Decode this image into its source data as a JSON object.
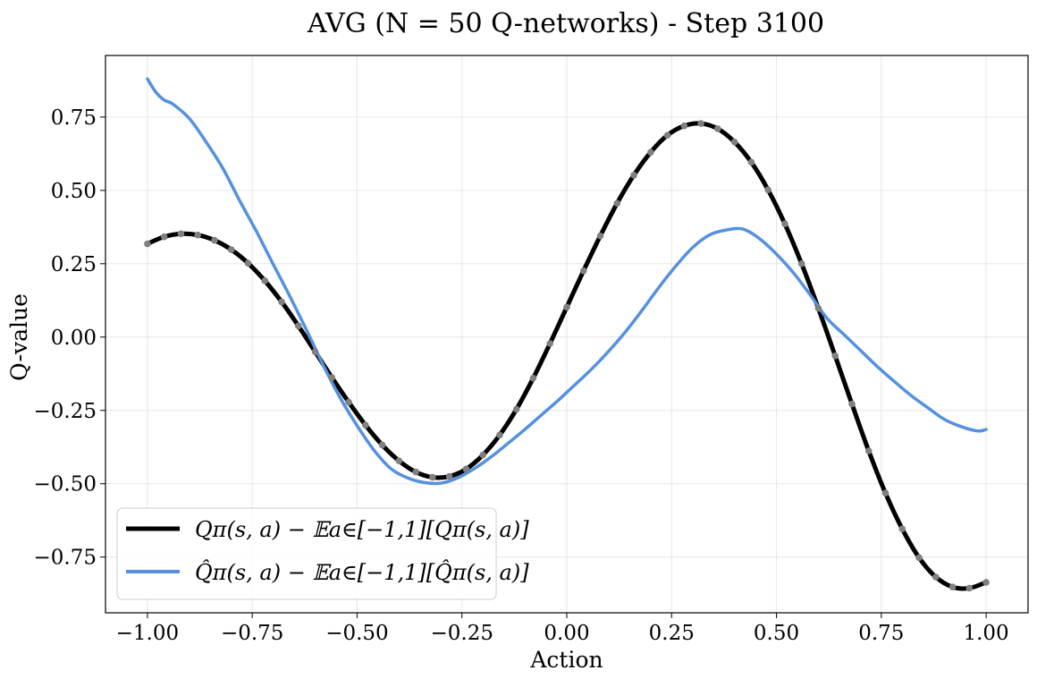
{
  "chart_data": {
    "type": "line",
    "title": "AVG (N = 50 Q-networks) - Step 3100",
    "xlabel": "Action",
    "ylabel": "Q-value",
    "xlim": [
      -1.1,
      1.1
    ],
    "ylim": [
      -0.94,
      0.96
    ],
    "xticks": [
      -1.0,
      -0.75,
      -0.5,
      -0.25,
      0.0,
      0.25,
      0.5,
      0.75,
      1.0
    ],
    "xtick_labels": [
      "−1.00",
      "−0.75",
      "−0.50",
      "−0.25",
      "0.00",
      "0.25",
      "0.50",
      "0.75",
      "1.00"
    ],
    "yticks": [
      0.75,
      0.5,
      0.25,
      0.0,
      -0.25,
      -0.5,
      -0.75
    ],
    "ytick_labels": [
      "0.75",
      "0.50",
      "0.25",
      "0.00",
      "−0.25",
      "−0.50",
      "−0.75"
    ],
    "grid": true,
    "legend_position": "lower-left",
    "series": [
      {
        "name": "Qπ(s, a) − 𝔼a∈[−1,1][Qπ(s, a)]",
        "color": "#000000",
        "markers_color": "#808080",
        "x": [
          -1.0,
          -0.96,
          -0.92,
          -0.88,
          -0.84,
          -0.8,
          -0.76,
          -0.72,
          -0.68,
          -0.64,
          -0.6,
          -0.56,
          -0.52,
          -0.48,
          -0.44,
          -0.4,
          -0.36,
          -0.32,
          -0.28,
          -0.24,
          -0.2,
          -0.16,
          -0.12,
          -0.08,
          -0.04,
          0.0,
          0.04,
          0.08,
          0.12,
          0.16,
          0.2,
          0.24,
          0.28,
          0.32,
          0.36,
          0.4,
          0.44,
          0.48,
          0.52,
          0.56,
          0.6,
          0.64,
          0.68,
          0.72,
          0.76,
          0.8,
          0.84,
          0.88,
          0.92,
          0.96,
          1.0
        ],
        "y": [
          0.318,
          0.342,
          0.352,
          0.348,
          0.33,
          0.298,
          0.252,
          0.192,
          0.12,
          0.038,
          -0.05,
          -0.138,
          -0.222,
          -0.3,
          -0.368,
          -0.422,
          -0.46,
          -0.478,
          -0.475,
          -0.45,
          -0.402,
          -0.334,
          -0.246,
          -0.14,
          -0.022,
          0.102,
          0.226,
          0.345,
          0.456,
          0.552,
          0.63,
          0.688,
          0.72,
          0.728,
          0.71,
          0.665,
          0.596,
          0.502,
          0.386,
          0.25,
          0.098,
          -0.064,
          -0.228,
          -0.388,
          -0.532,
          -0.654,
          -0.752,
          -0.818,
          -0.852,
          -0.856,
          -0.836
        ]
      },
      {
        "name": "Q̂π(s, a) − 𝔼a∈[−1,1][Q̂π(s, a)]",
        "color": "#5591de",
        "x": [
          -1.0,
          -0.98,
          -0.96,
          -0.94,
          -0.9,
          -0.86,
          -0.82,
          -0.78,
          -0.74,
          -0.7,
          -0.66,
          -0.62,
          -0.58,
          -0.54,
          -0.5,
          -0.46,
          -0.42,
          -0.38,
          -0.34,
          -0.3,
          -0.26,
          -0.22,
          -0.18,
          -0.14,
          -0.1,
          -0.06,
          -0.02,
          0.02,
          0.06,
          0.1,
          0.14,
          0.18,
          0.22,
          0.26,
          0.3,
          0.34,
          0.38,
          0.42,
          0.46,
          0.5,
          0.54,
          0.58,
          0.62,
          0.66,
          0.7,
          0.74,
          0.78,
          0.82,
          0.86,
          0.9,
          0.94,
          0.98,
          1.0
        ],
        "y": [
          0.88,
          0.835,
          0.808,
          0.795,
          0.745,
          0.665,
          0.575,
          0.465,
          0.36,
          0.248,
          0.138,
          0.022,
          -0.098,
          -0.208,
          -0.302,
          -0.385,
          -0.448,
          -0.48,
          -0.496,
          -0.498,
          -0.48,
          -0.448,
          -0.408,
          -0.362,
          -0.315,
          -0.265,
          -0.215,
          -0.162,
          -0.108,
          -0.048,
          0.018,
          0.092,
          0.17,
          0.242,
          0.305,
          0.348,
          0.365,
          0.368,
          0.335,
          0.283,
          0.22,
          0.145,
          0.065,
          0.01,
          -0.045,
          -0.1,
          -0.15,
          -0.198,
          -0.24,
          -0.28,
          -0.305,
          -0.32,
          -0.315
        ]
      }
    ]
  },
  "colors": {
    "grid": "#e6e6e6",
    "axes": "#000000",
    "marker": "#808080"
  }
}
